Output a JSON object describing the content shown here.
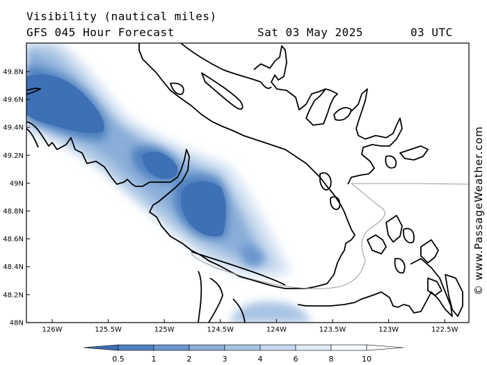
{
  "header": {
    "title": "Visibility (nautical miles)",
    "subtitle": "GFS 045 Hour Forecast",
    "date": "Sat 03 May 2025",
    "time": "03 UTC"
  },
  "axes": {
    "lon_ticks": [
      "126W",
      "125.5W",
      "125W",
      "124.5W",
      "124W",
      "123.5W",
      "123W",
      "122.5W"
    ],
    "lat_ticks": [
      "49.8N",
      "49.6N",
      "49.4N",
      "49.2N",
      "49N",
      "48.8N",
      "48.6N",
      "48.4N",
      "48.2N",
      "48N"
    ]
  },
  "legend": {
    "labels": [
      "0.5",
      "1",
      "2",
      "3",
      "4",
      "6",
      "8",
      "10"
    ],
    "colors": [
      "#3c6eb4",
      "#4f80c0",
      "#6b96cd",
      "#8aaed8",
      "#a8c4e3",
      "#c6d9ee",
      "#e0ebf6",
      "#f6f9fd"
    ]
  },
  "credit": "© www.PassageWeather.com",
  "colors": {
    "coastline": "#000000",
    "border": "#999999",
    "low_visibility": "#3c6eb4"
  }
}
